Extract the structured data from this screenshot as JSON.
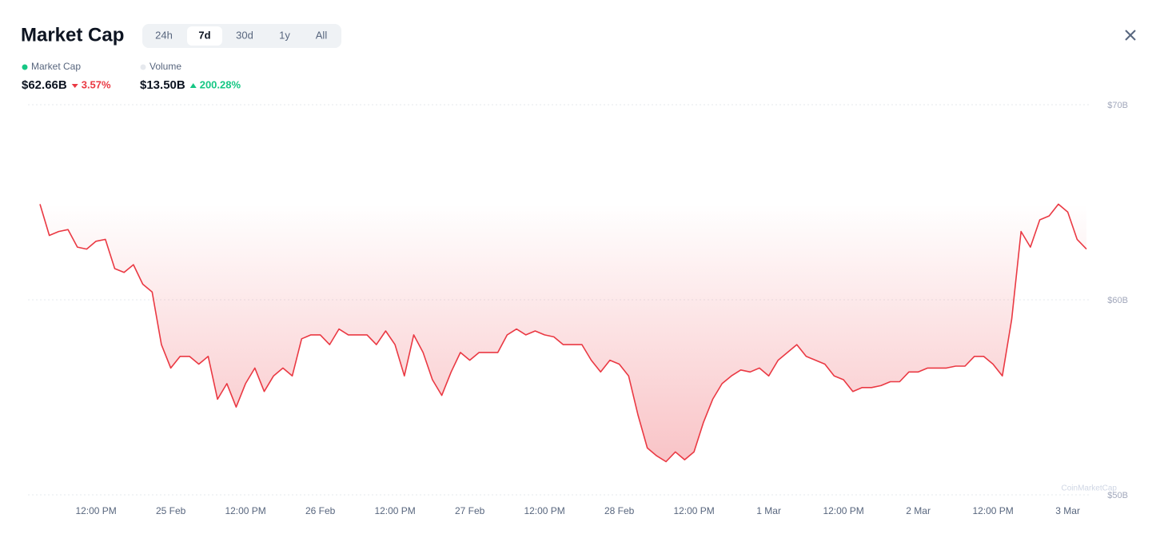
{
  "header": {
    "title": "Market Cap",
    "tabs": [
      "24h",
      "7d",
      "30d",
      "1y",
      "All"
    ],
    "active_tab": 1
  },
  "stats": [
    {
      "value": "$62.66B",
      "change": "3.57%",
      "direction": "down",
      "dot_color": "#16c784"
    },
    {
      "label": "Volume",
      "value": "$13.50B",
      "change": "200.28%",
      "direction": "up",
      "dot_color": "#e6e9ee"
    }
  ],
  "watermark": "CoinMarketCap",
  "chart_data": {
    "type": "line",
    "categories": [
      null,
      null,
      null,
      null,
      null,
      null,
      "12:00 PM",
      null,
      null,
      null,
      null,
      null,
      null,
      null,
      "25 Feb",
      null,
      null,
      null,
      null,
      null,
      null,
      null,
      "12:00 PM",
      null,
      null,
      null,
      null,
      null,
      null,
      null,
      "26 Feb",
      null,
      null,
      null,
      null,
      null,
      null,
      null,
      "12:00 PM",
      null,
      null,
      null,
      null,
      null,
      null,
      null,
      "27 Feb",
      null,
      null,
      null,
      null,
      null,
      null,
      null,
      "12:00 PM",
      null,
      null,
      null,
      null,
      null,
      null,
      null,
      "28 Feb",
      null,
      null,
      null,
      null,
      null,
      null,
      null,
      "12:00 PM",
      null,
      null,
      null,
      null,
      null,
      null,
      null,
      "1 Mar",
      null,
      null,
      null,
      null,
      null,
      null,
      null,
      "12:00 PM",
      null,
      null,
      null,
      null,
      null,
      null,
      null,
      "2 Mar",
      null,
      null,
      null,
      null,
      null,
      null,
      null,
      "12:00 PM",
      null,
      null,
      null,
      null,
      null,
      null,
      null,
      "3 Mar",
      null,
      null
    ],
    "series": [
      {
        "name": "Market Cap",
        "color": "#ea3943",
        "values": [
          64.9,
          63.3,
          63.5,
          63.6,
          62.7,
          62.6,
          63.0,
          63.1,
          61.6,
          61.4,
          61.8,
          60.8,
          60.4,
          57.7,
          56.5,
          57.1,
          57.1,
          56.7,
          57.1,
          54.9,
          55.7,
          54.5,
          55.7,
          56.5,
          55.3,
          56.1,
          56.5,
          56.1,
          58.0,
          58.2,
          58.2,
          57.7,
          58.5,
          58.2,
          58.2,
          58.2,
          57.7,
          58.4,
          57.7,
          56.1,
          58.2,
          57.3,
          55.9,
          55.1,
          56.3,
          57.3,
          56.9,
          57.3,
          57.3,
          57.3,
          58.2,
          58.5,
          58.2,
          58.4,
          58.2,
          58.1,
          57.7,
          57.7,
          57.7,
          56.9,
          56.3,
          56.9,
          56.7,
          56.1,
          54.1,
          52.4,
          52.0,
          51.7,
          52.2,
          51.8,
          52.2,
          53.7,
          54.9,
          55.7,
          56.1,
          56.4,
          56.3,
          56.5,
          56.1,
          56.9,
          57.3,
          57.7,
          57.1,
          56.9,
          56.7,
          56.1,
          55.9,
          55.3,
          55.5,
          55.5,
          55.6,
          55.8,
          55.8,
          56.3,
          56.3,
          56.5,
          56.5,
          56.5,
          56.6,
          56.6,
          57.1,
          57.1,
          56.7,
          56.1,
          59.0,
          63.5,
          62.7,
          64.1,
          64.3,
          64.9,
          64.5,
          63.1,
          62.6
        ]
      }
    ],
    "ylim": [
      50,
      70
    ],
    "yticks": [
      {
        "value": 50,
        "label": "$50B"
      },
      {
        "value": 60,
        "label": "$60B"
      },
      {
        "value": 70,
        "label": "$70B"
      }
    ],
    "grid": true
  }
}
